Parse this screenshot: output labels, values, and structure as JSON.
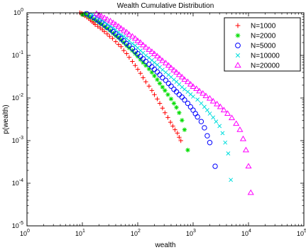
{
  "chart_data": {
    "type": "scatter",
    "title": "Wealth Cumulative Distribution",
    "xlabel": "wealth",
    "ylabel": "p(wealth)",
    "x_scale": "log",
    "y_scale": "log",
    "xlim": [
      1,
      100000
    ],
    "ylim": [
      1e-05,
      1
    ],
    "grid": false,
    "legend_position": "top-right",
    "x_ticks": [
      {
        "base": "10",
        "exp": "0",
        "value": 1
      },
      {
        "base": "10",
        "exp": "1",
        "value": 10
      },
      {
        "base": "10",
        "exp": "2",
        "value": 100
      },
      {
        "base": "10",
        "exp": "3",
        "value": 1000
      },
      {
        "base": "10",
        "exp": "4",
        "value": 10000
      },
      {
        "base": "10",
        "exp": "5",
        "value": 100000
      }
    ],
    "y_ticks": [
      {
        "base": "10",
        "exp": "0",
        "value": 1
      },
      {
        "base": "10",
        "exp": "-1",
        "value": 0.1
      },
      {
        "base": "10",
        "exp": "-2",
        "value": 0.01
      },
      {
        "base": "10",
        "exp": "-3",
        "value": 0.001
      },
      {
        "base": "10",
        "exp": "-4",
        "value": 0.0001
      },
      {
        "base": "10",
        "exp": "-5",
        "value": 1e-05
      }
    ],
    "series": [
      {
        "name": "N=1000",
        "marker": "plus",
        "color": "#ff0000",
        "x": [
          9,
          9.5,
          10,
          10.5,
          11,
          12,
          13,
          14,
          15,
          16,
          17,
          19,
          21,
          23,
          25,
          28,
          31,
          35,
          40,
          45,
          50,
          56,
          63,
          70,
          80,
          90,
          100,
          112,
          125,
          140,
          160,
          180,
          200,
          225,
          250,
          280,
          310,
          350,
          390,
          430,
          470,
          520,
          560,
          600
        ],
        "y": [
          1.0,
          0.97,
          0.95,
          0.9,
          0.85,
          0.79,
          0.73,
          0.67,
          0.62,
          0.58,
          0.53,
          0.48,
          0.44,
          0.4,
          0.36,
          0.32,
          0.28,
          0.25,
          0.21,
          0.18,
          0.16,
          0.13,
          0.11,
          0.09,
          0.072,
          0.058,
          0.047,
          0.038,
          0.03,
          0.024,
          0.019,
          0.015,
          0.012,
          0.0095,
          0.0075,
          0.0058,
          0.0045,
          0.0035,
          0.0027,
          0.0022,
          0.0018,
          0.0015,
          0.0012,
          0.001
        ]
      },
      {
        "name": "N=2000",
        "marker": "star",
        "color": "#00dd00",
        "x": [
          10,
          11,
          12,
          13,
          14,
          16,
          18,
          20,
          22,
          25,
          28,
          32,
          36,
          40,
          45,
          50,
          56,
          63,
          70,
          80,
          90,
          100,
          112,
          125,
          140,
          160,
          180,
          200,
          225,
          250,
          280,
          310,
          350,
          400,
          450,
          500,
          560,
          630,
          700,
          800
        ],
        "y": [
          0.9,
          0.95,
          0.88,
          0.83,
          0.78,
          0.71,
          0.65,
          0.59,
          0.54,
          0.48,
          0.43,
          0.38,
          0.33,
          0.29,
          0.26,
          0.23,
          0.2,
          0.17,
          0.15,
          0.13,
          0.11,
          0.095,
          0.08,
          0.068,
          0.058,
          0.048,
          0.04,
          0.033,
          0.027,
          0.022,
          0.018,
          0.015,
          0.012,
          0.0095,
          0.0075,
          0.006,
          0.0045,
          0.003,
          0.0018,
          0.0006
        ]
      },
      {
        "name": "N=5000",
        "marker": "circle",
        "color": "#0000ff",
        "x": [
          12,
          14,
          16,
          18,
          20,
          22,
          25,
          28,
          32,
          36,
          40,
          45,
          50,
          56,
          63,
          70,
          80,
          90,
          100,
          112,
          125,
          140,
          160,
          180,
          200,
          225,
          250,
          280,
          320,
          360,
          400,
          450,
          500,
          560,
          630,
          700,
          800,
          900,
          1000,
          1100,
          1200,
          1400,
          1600,
          1800,
          2000,
          2500
        ],
        "y": [
          0.95,
          0.85,
          0.78,
          0.7,
          0.64,
          0.58,
          0.52,
          0.46,
          0.41,
          0.36,
          0.32,
          0.28,
          0.25,
          0.22,
          0.19,
          0.17,
          0.145,
          0.125,
          0.11,
          0.095,
          0.083,
          0.072,
          0.062,
          0.054,
          0.047,
          0.041,
          0.035,
          0.03,
          0.026,
          0.022,
          0.019,
          0.016,
          0.014,
          0.012,
          0.0105,
          0.009,
          0.0075,
          0.0062,
          0.0052,
          0.0043,
          0.0036,
          0.0028,
          0.002,
          0.0013,
          0.0009,
          0.00025
        ]
      },
      {
        "name": "N=10000",
        "marker": "x",
        "color": "#00dddd",
        "x": [
          15,
          18,
          20,
          22,
          25,
          28,
          32,
          36,
          40,
          45,
          50,
          56,
          63,
          70,
          80,
          90,
          100,
          112,
          125,
          140,
          160,
          180,
          200,
          225,
          250,
          280,
          320,
          360,
          400,
          450,
          500,
          560,
          630,
          700,
          800,
          900,
          1000,
          1200,
          1400,
          1600,
          1800,
          2000,
          2300,
          2600,
          3000,
          3400,
          3800,
          4300,
          4800
        ],
        "y": [
          0.9,
          0.82,
          0.75,
          0.69,
          0.62,
          0.55,
          0.49,
          0.44,
          0.4,
          0.35,
          0.31,
          0.28,
          0.25,
          0.22,
          0.19,
          0.17,
          0.15,
          0.13,
          0.115,
          0.1,
          0.088,
          0.077,
          0.068,
          0.06,
          0.053,
          0.046,
          0.04,
          0.035,
          0.031,
          0.027,
          0.024,
          0.021,
          0.018,
          0.016,
          0.014,
          0.0122,
          0.0108,
          0.0092,
          0.0075,
          0.0062,
          0.0052,
          0.0043,
          0.0035,
          0.0028,
          0.0022,
          0.0015,
          0.0009,
          0.0005,
          0.00012
        ]
      },
      {
        "name": "N=20000",
        "marker": "triangle",
        "color": "#ff00ff",
        "x": [
          18,
          20,
          22,
          25,
          28,
          32,
          36,
          40,
          45,
          50,
          56,
          63,
          70,
          80,
          90,
          100,
          112,
          125,
          140,
          160,
          180,
          200,
          225,
          250,
          280,
          320,
          360,
          400,
          450,
          500,
          560,
          630,
          700,
          800,
          900,
          1000,
          1150,
          1300,
          1500,
          1700,
          2000,
          2300,
          2700,
          3100,
          3600,
          4200,
          5000,
          6000,
          7000,
          8000,
          9000,
          10000,
          11000
        ],
        "y": [
          0.95,
          0.88,
          0.83,
          0.76,
          0.7,
          0.64,
          0.58,
          0.53,
          0.48,
          0.43,
          0.39,
          0.35,
          0.31,
          0.28,
          0.25,
          0.22,
          0.2,
          0.175,
          0.155,
          0.137,
          0.122,
          0.108,
          0.096,
          0.085,
          0.075,
          0.066,
          0.058,
          0.051,
          0.045,
          0.04,
          0.035,
          0.031,
          0.027,
          0.024,
          0.021,
          0.0185,
          0.0165,
          0.0145,
          0.0128,
          0.0112,
          0.0098,
          0.0084,
          0.0072,
          0.0062,
          0.0052,
          0.0043,
          0.0034,
          0.0025,
          0.0018,
          0.0011,
          0.0006,
          0.00025,
          6e-05
        ]
      }
    ]
  }
}
